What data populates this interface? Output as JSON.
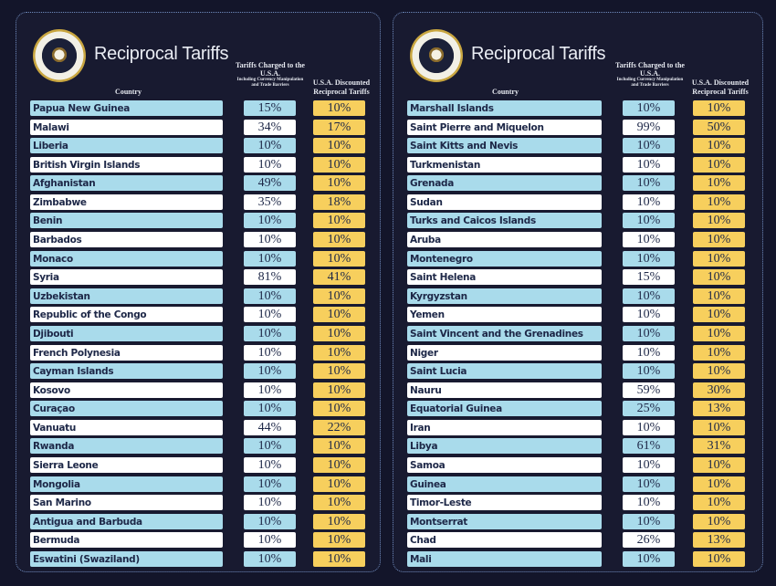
{
  "title": "Reciprocal Tariffs",
  "headers": {
    "country": "Country",
    "charged": "Tariffs Charged to the U.S.A.",
    "charged_sub": "Including Currency Manipulation and Trade Barriers",
    "discounted": "U.S.A. Discounted Reciprocal Tariffs"
  },
  "colors": {
    "background": "#13152a",
    "row_blue": "#a9dbeb",
    "row_white": "#ffffff",
    "reciprocal": "#f7cf5d"
  },
  "panels": [
    {
      "rows": [
        {
          "country": "Papua New Guinea",
          "charged": "15%",
          "reciprocal": "10%"
        },
        {
          "country": "Malawi",
          "charged": "34%",
          "reciprocal": "17%"
        },
        {
          "country": "Liberia",
          "charged": "10%",
          "reciprocal": "10%"
        },
        {
          "country": "British Virgin Islands",
          "charged": "10%",
          "reciprocal": "10%"
        },
        {
          "country": "Afghanistan",
          "charged": "49%",
          "reciprocal": "10%"
        },
        {
          "country": "Zimbabwe",
          "charged": "35%",
          "reciprocal": "18%"
        },
        {
          "country": "Benin",
          "charged": "10%",
          "reciprocal": "10%"
        },
        {
          "country": "Barbados",
          "charged": "10%",
          "reciprocal": "10%"
        },
        {
          "country": "Monaco",
          "charged": "10%",
          "reciprocal": "10%"
        },
        {
          "country": "Syria",
          "charged": "81%",
          "reciprocal": "41%"
        },
        {
          "country": "Uzbekistan",
          "charged": "10%",
          "reciprocal": "10%"
        },
        {
          "country": "Republic of the Congo",
          "charged": "10%",
          "reciprocal": "10%"
        },
        {
          "country": "Djibouti",
          "charged": "10%",
          "reciprocal": "10%"
        },
        {
          "country": "French Polynesia",
          "charged": "10%",
          "reciprocal": "10%"
        },
        {
          "country": "Cayman Islands",
          "charged": "10%",
          "reciprocal": "10%"
        },
        {
          "country": "Kosovo",
          "charged": "10%",
          "reciprocal": "10%"
        },
        {
          "country": "Curaçao",
          "charged": "10%",
          "reciprocal": "10%"
        },
        {
          "country": "Vanuatu",
          "charged": "44%",
          "reciprocal": "22%"
        },
        {
          "country": "Rwanda",
          "charged": "10%",
          "reciprocal": "10%"
        },
        {
          "country": "Sierra Leone",
          "charged": "10%",
          "reciprocal": "10%"
        },
        {
          "country": "Mongolia",
          "charged": "10%",
          "reciprocal": "10%"
        },
        {
          "country": "San Marino",
          "charged": "10%",
          "reciprocal": "10%"
        },
        {
          "country": "Antigua and Barbuda",
          "charged": "10%",
          "reciprocal": "10%"
        },
        {
          "country": "Bermuda",
          "charged": "10%",
          "reciprocal": "10%"
        },
        {
          "country": "Eswatini (Swaziland)",
          "charged": "10%",
          "reciprocal": "10%"
        }
      ]
    },
    {
      "rows": [
        {
          "country": "Marshall Islands",
          "charged": "10%",
          "reciprocal": "10%"
        },
        {
          "country": "Saint Pierre and Miquelon",
          "charged": "99%",
          "reciprocal": "50%"
        },
        {
          "country": "Saint Kitts and Nevis",
          "charged": "10%",
          "reciprocal": "10%"
        },
        {
          "country": "Turkmenistan",
          "charged": "10%",
          "reciprocal": "10%"
        },
        {
          "country": "Grenada",
          "charged": "10%",
          "reciprocal": "10%"
        },
        {
          "country": "Sudan",
          "charged": "10%",
          "reciprocal": "10%"
        },
        {
          "country": "Turks and Caicos Islands",
          "charged": "10%",
          "reciprocal": "10%"
        },
        {
          "country": "Aruba",
          "charged": "10%",
          "reciprocal": "10%"
        },
        {
          "country": "Montenegro",
          "charged": "10%",
          "reciprocal": "10%"
        },
        {
          "country": "Saint Helena",
          "charged": "15%",
          "reciprocal": "10%"
        },
        {
          "country": "Kyrgyzstan",
          "charged": "10%",
          "reciprocal": "10%"
        },
        {
          "country": "Yemen",
          "charged": "10%",
          "reciprocal": "10%"
        },
        {
          "country": "Saint Vincent and the Grenadines",
          "charged": "10%",
          "reciprocal": "10%"
        },
        {
          "country": "Niger",
          "charged": "10%",
          "reciprocal": "10%"
        },
        {
          "country": "Saint Lucia",
          "charged": "10%",
          "reciprocal": "10%"
        },
        {
          "country": "Nauru",
          "charged": "59%",
          "reciprocal": "30%"
        },
        {
          "country": "Equatorial Guinea",
          "charged": "25%",
          "reciprocal": "13%"
        },
        {
          "country": "Iran",
          "charged": "10%",
          "reciprocal": "10%"
        },
        {
          "country": "Libya",
          "charged": "61%",
          "reciprocal": "31%"
        },
        {
          "country": "Samoa",
          "charged": "10%",
          "reciprocal": "10%"
        },
        {
          "country": "Guinea",
          "charged": "10%",
          "reciprocal": "10%"
        },
        {
          "country": "Timor-Leste",
          "charged": "10%",
          "reciprocal": "10%"
        },
        {
          "country": "Montserrat",
          "charged": "10%",
          "reciprocal": "10%"
        },
        {
          "country": "Chad",
          "charged": "26%",
          "reciprocal": "13%"
        },
        {
          "country": "Mali",
          "charged": "10%",
          "reciprocal": "10%"
        }
      ]
    }
  ]
}
